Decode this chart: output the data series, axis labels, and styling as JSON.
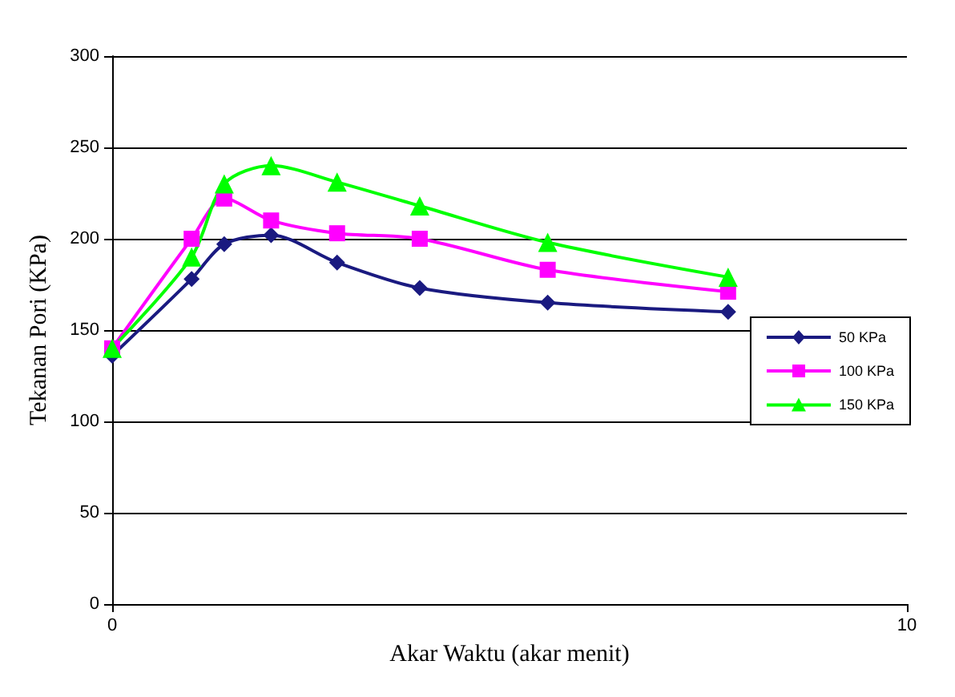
{
  "chart_data": {
    "type": "line",
    "xlabel": "Akar Waktu (akar menit)",
    "ylabel": "Tekanan Pori (KPa)",
    "x": [
      0,
      1,
      1.41,
      2,
      2.83,
      3.87,
      5.48,
      7.75
    ],
    "series": [
      {
        "name": "50 KPa",
        "color": "#1a1a80",
        "marker": "diamond",
        "values": [
          136,
          178,
          197,
          202,
          187,
          173,
          165,
          160
        ]
      },
      {
        "name": "100 KPa",
        "color": "#ff00ff",
        "marker": "square",
        "values": [
          140,
          200,
          222,
          210,
          203,
          200,
          183,
          171
        ]
      },
      {
        "name": "150 KPa",
        "color": "#00ff00",
        "marker": "triangle",
        "values": [
          140,
          190,
          230,
          240,
          231,
          218,
          198,
          179
        ]
      }
    ],
    "xlim": [
      0,
      10
    ],
    "xticks": [
      0,
      10
    ],
    "ylim": [
      0,
      300
    ],
    "yticks": [
      0,
      50,
      100,
      150,
      200,
      250,
      300
    ],
    "grid": "y",
    "legend": "right",
    "line_style": "solid"
  }
}
